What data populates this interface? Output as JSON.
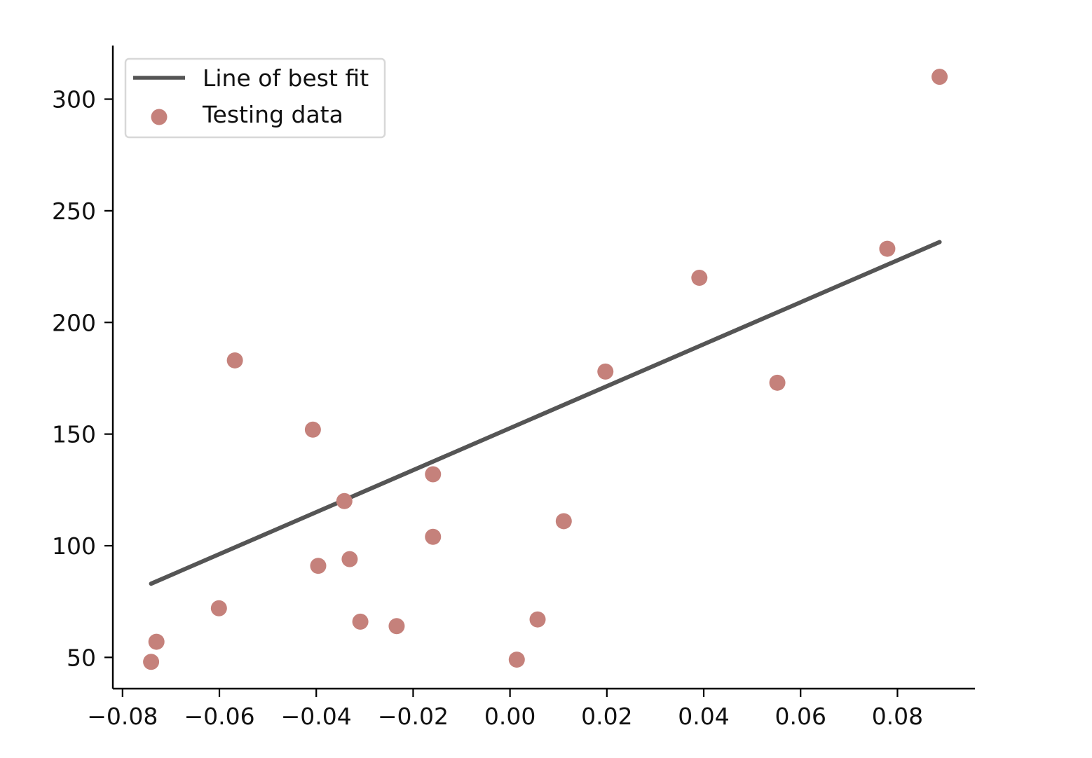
{
  "chart_data": {
    "type": "scatter",
    "title": "",
    "xlabel": "",
    "ylabel": "",
    "xlim": [
      -0.082,
      0.096
    ],
    "ylim": [
      36,
      324
    ],
    "x_ticks": [
      -0.08,
      -0.06,
      -0.04,
      -0.02,
      0.0,
      0.02,
      0.04,
      0.06,
      0.08
    ],
    "x_tick_labels": [
      "−0.08",
      "−0.06",
      "−0.04",
      "−0.02",
      "0.00",
      "0.02",
      "0.04",
      "0.06",
      "0.08"
    ],
    "y_ticks": [
      50,
      100,
      150,
      200,
      250,
      300
    ],
    "y_tick_labels": [
      "50",
      "100",
      "150",
      "200",
      "250",
      "300"
    ],
    "grid": false,
    "legend_position": "top-left",
    "series": [
      {
        "name": "Line of best fit",
        "kind": "line",
        "color": "#555555",
        "points": [
          {
            "x": -0.0741,
            "y": 83
          },
          {
            "x": 0.0887,
            "y": 236
          }
        ]
      },
      {
        "name": "Testing data",
        "kind": "scatter",
        "color": "#c5817b",
        "points": [
          {
            "x": -0.0741,
            "y": 48
          },
          {
            "x": -0.073,
            "y": 57
          },
          {
            "x": -0.0601,
            "y": 72
          },
          {
            "x": -0.0568,
            "y": 183
          },
          {
            "x": -0.0407,
            "y": 152
          },
          {
            "x": -0.0396,
            "y": 91
          },
          {
            "x": -0.0342,
            "y": 120
          },
          {
            "x": -0.0331,
            "y": 94
          },
          {
            "x": -0.0309,
            "y": 66
          },
          {
            "x": -0.0234,
            "y": 64
          },
          {
            "x": -0.0159,
            "y": 132
          },
          {
            "x": -0.0159,
            "y": 104
          },
          {
            "x": 0.0014,
            "y": 49
          },
          {
            "x": 0.0057,
            "y": 67
          },
          {
            "x": 0.0111,
            "y": 111
          },
          {
            "x": 0.0197,
            "y": 178
          },
          {
            "x": 0.0391,
            "y": 220
          },
          {
            "x": 0.0552,
            "y": 173
          },
          {
            "x": 0.0779,
            "y": 233
          },
          {
            "x": 0.0887,
            "y": 310
          }
        ]
      }
    ]
  }
}
